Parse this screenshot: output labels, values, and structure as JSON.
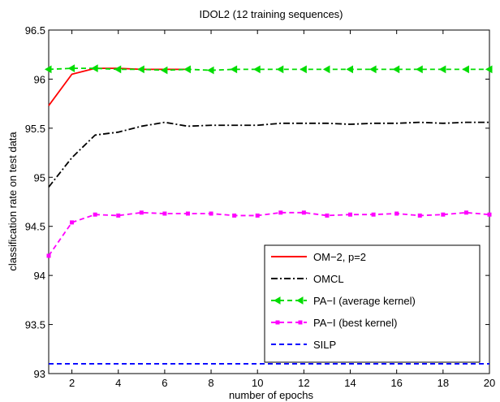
{
  "chart_data": {
    "type": "line",
    "title": "IDOL2 (12 training sequences)",
    "xlabel": "number of epochs",
    "ylabel": "classification rate on test data",
    "xlim": [
      1,
      20
    ],
    "ylim": [
      93,
      96.5
    ],
    "xticks": [
      2,
      4,
      6,
      8,
      10,
      12,
      14,
      16,
      18,
      20
    ],
    "yticks": [
      93,
      93.5,
      94,
      94.5,
      95,
      95.5,
      96,
      96.5
    ],
    "ytick_labels": [
      "93",
      "93.5",
      "94",
      "94.5",
      "95",
      "95.5",
      "96",
      "96.5"
    ],
    "grid": false,
    "legend_position": "lower-right",
    "series": [
      {
        "name": "OM−2, p=2",
        "color": "#ff0000",
        "style": "solid",
        "marker": "none",
        "x": [
          1,
          2,
          3,
          4,
          5,
          6,
          7
        ],
        "y": [
          95.73,
          96.05,
          96.11,
          96.11,
          96.1,
          96.1,
          96.1
        ]
      },
      {
        "name": "OMCL",
        "color": "#000000",
        "style": "dashdot",
        "marker": "none",
        "x": [
          1,
          2,
          3,
          4,
          5,
          6,
          7,
          8,
          9,
          10,
          11,
          12,
          13,
          14,
          15,
          16,
          17,
          18,
          19,
          20
        ],
        "y": [
          94.9,
          95.2,
          95.43,
          95.46,
          95.52,
          95.56,
          95.52,
          95.53,
          95.53,
          95.53,
          95.55,
          95.55,
          95.55,
          95.54,
          95.55,
          95.55,
          95.56,
          95.55,
          95.56,
          95.56
        ]
      },
      {
        "name": "PA−I (average kernel)",
        "color": "#00dd00",
        "style": "dashed",
        "marker": "triangle-left",
        "x": [
          1,
          2,
          3,
          4,
          5,
          6,
          7,
          8,
          9,
          10,
          11,
          12,
          13,
          14,
          15,
          16,
          17,
          18,
          19,
          20
        ],
        "y": [
          96.1,
          96.11,
          96.11,
          96.1,
          96.1,
          96.09,
          96.1,
          96.09,
          96.1,
          96.1,
          96.1,
          96.1,
          96.1,
          96.1,
          96.1,
          96.1,
          96.1,
          96.1,
          96.1,
          96.1
        ]
      },
      {
        "name": "PA−I (best kernel)",
        "color": "#ff00ff",
        "style": "dashed",
        "marker": "square",
        "x": [
          1,
          2,
          3,
          4,
          5,
          6,
          7,
          8,
          9,
          10,
          11,
          12,
          13,
          14,
          15,
          16,
          17,
          18,
          19,
          20
        ],
        "y": [
          94.2,
          94.54,
          94.62,
          94.61,
          94.64,
          94.63,
          94.63,
          94.63,
          94.61,
          94.61,
          94.64,
          94.64,
          94.61,
          94.62,
          94.62,
          94.63,
          94.61,
          94.62,
          94.64,
          94.62
        ]
      },
      {
        "name": "SILP",
        "color": "#0000ff",
        "style": "dashed",
        "marker": "none",
        "x": [
          1,
          20
        ],
        "y": [
          93.1,
          93.1
        ]
      }
    ]
  }
}
